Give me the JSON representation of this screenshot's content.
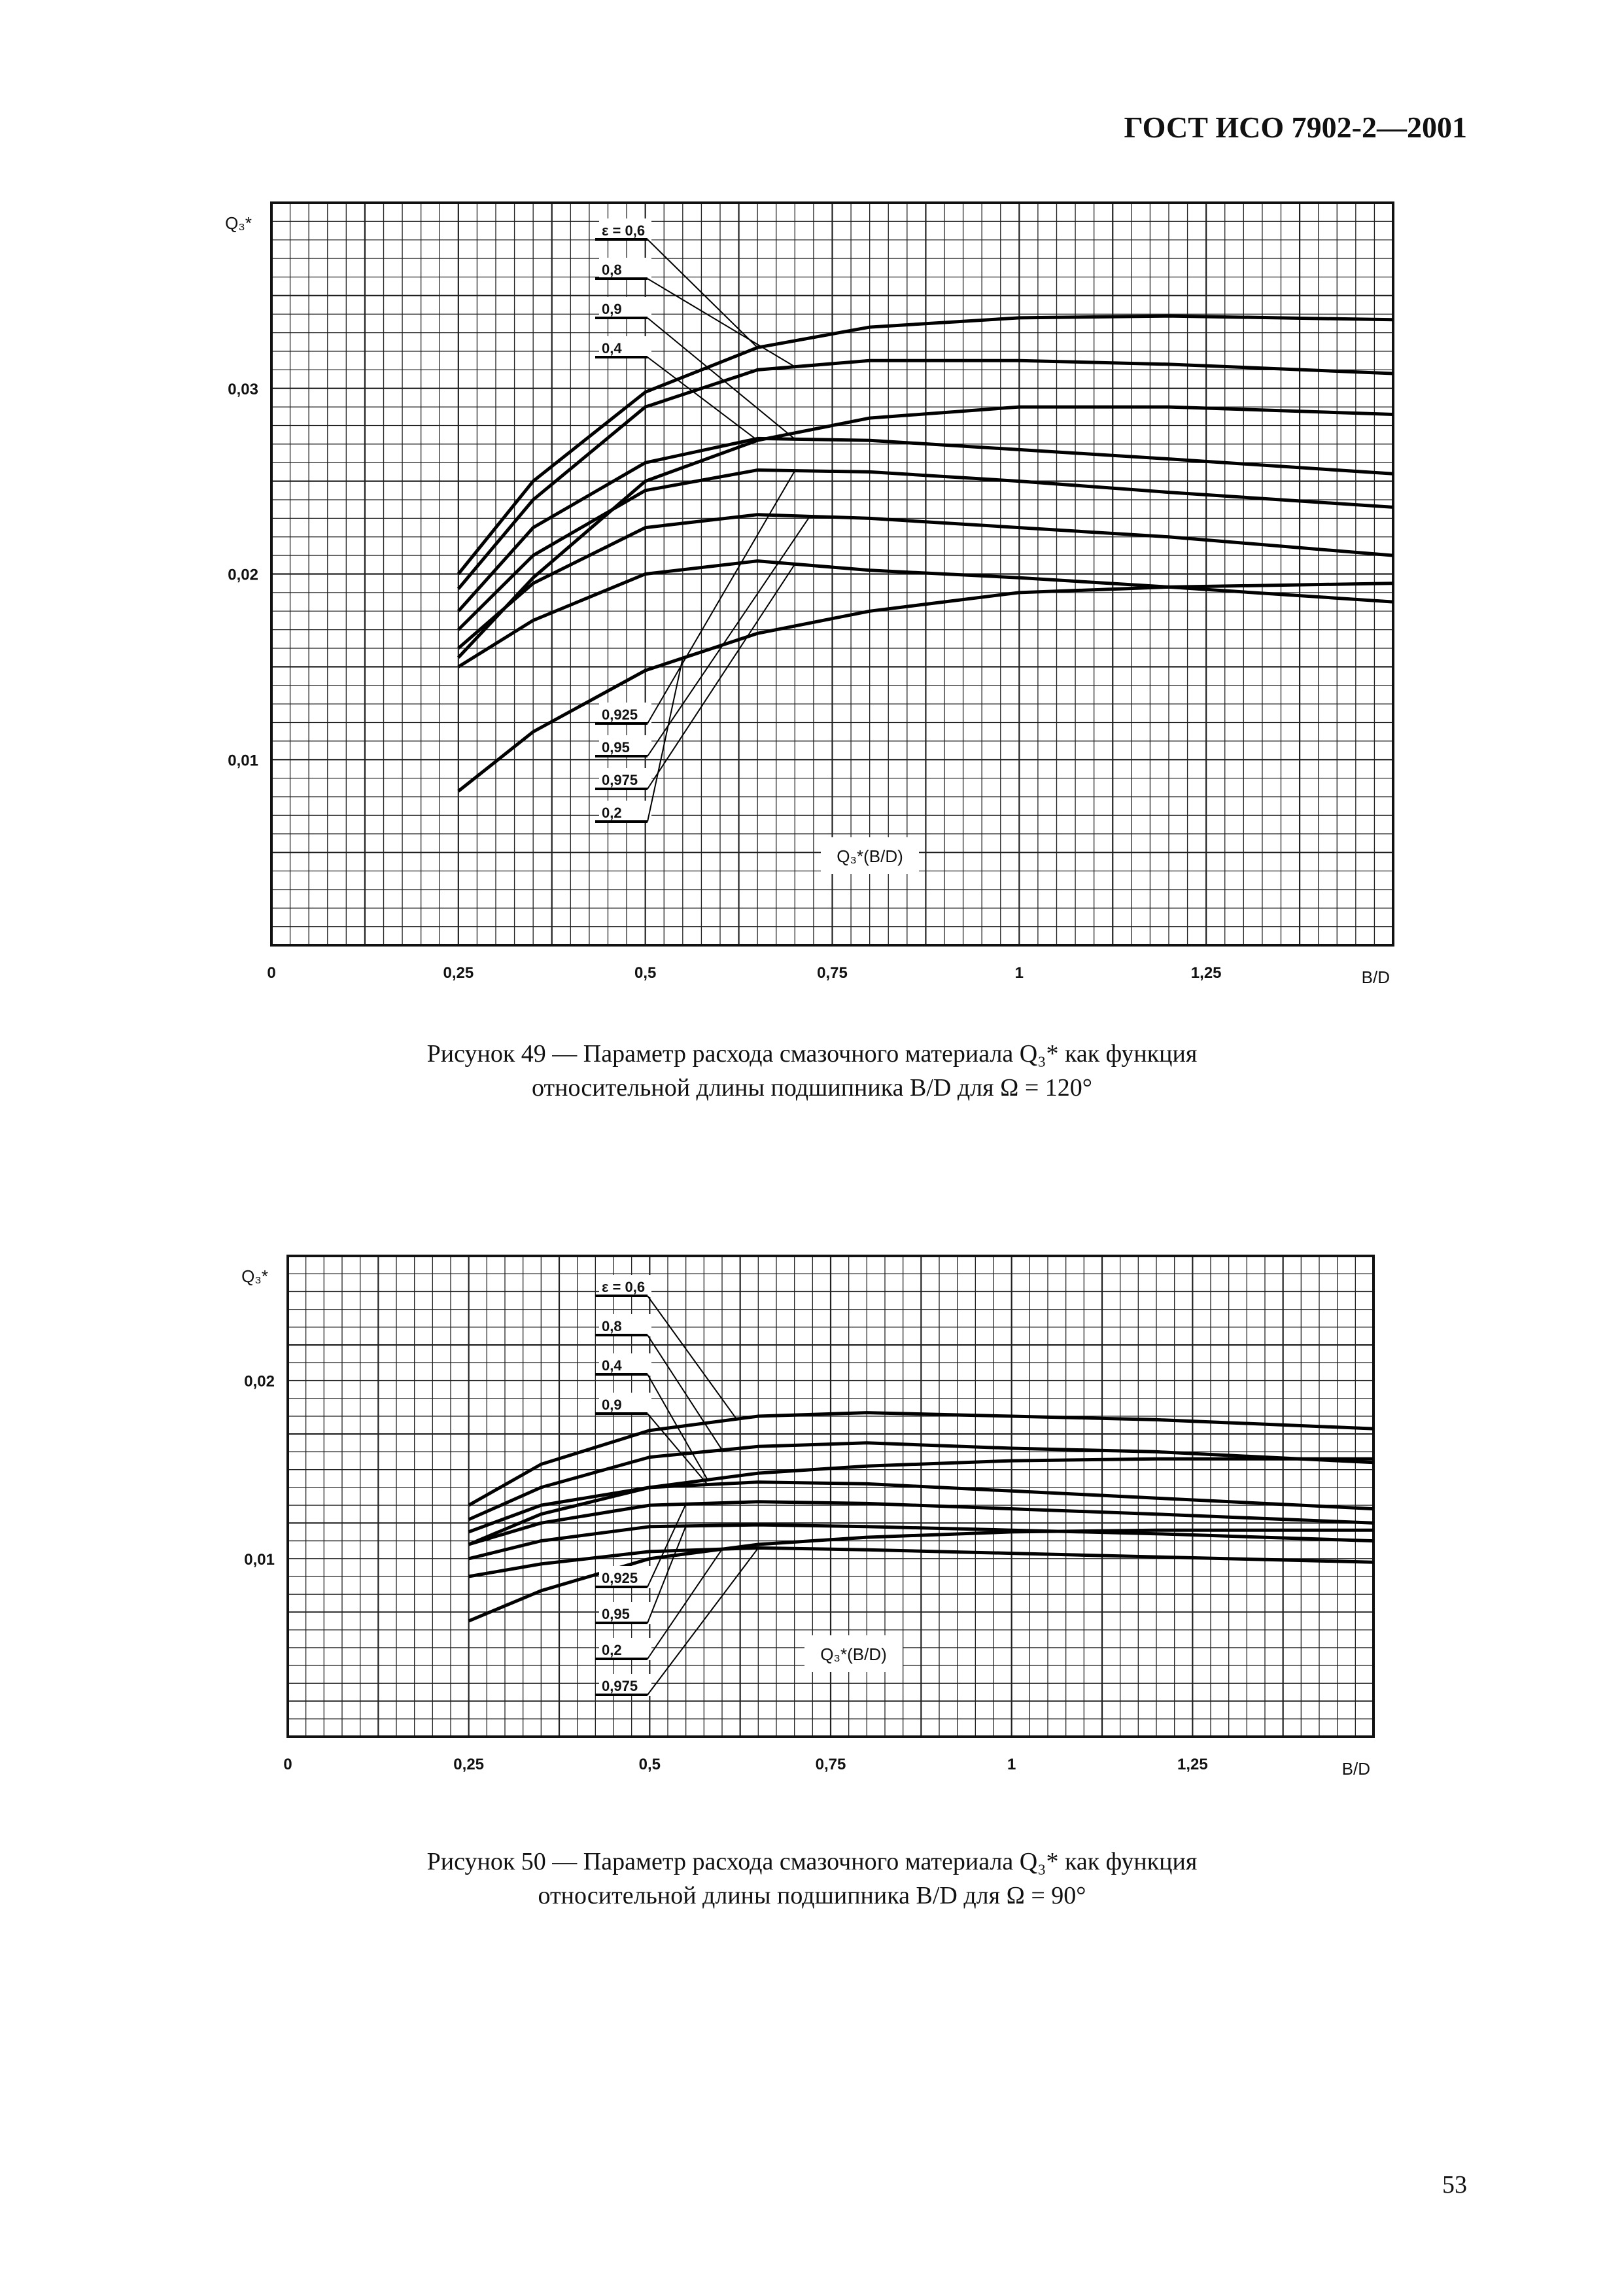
{
  "header": {
    "doc_code": "ГОСТ ИСО 7902-2—2001"
  },
  "page_number": "53",
  "captions": {
    "fig49_line1": "Рисунок 49 — Параметр расхода смазочного материала Q₃* как функция",
    "fig49_line2": "относительной длины подшипника B/D для Ω = 120°",
    "fig50_line1": "Рисунок 50 — Параметр расхода смазочного материала Q₃* как функция",
    "fig50_line2": "относительной длины подшипника B/D для Ω = 90°"
  },
  "chart_data": [
    {
      "type": "line",
      "id": "fig49",
      "ylabel": "Q₃*",
      "xlabel": "B/D",
      "inset_label": "Q₃*(B/D)",
      "xlim": [
        0,
        1.5
      ],
      "ylim": [
        0,
        0.04
      ],
      "x_ticks": [
        "0",
        "0,25",
        "0,5",
        "0,75",
        "1",
        "1,25"
      ],
      "y_ticks": [
        "0,01",
        "0,02",
        "0,03"
      ],
      "y_tick_values": [
        0.01,
        0.02,
        0.03
      ],
      "grid": true,
      "x": [
        0.25,
        0.35,
        0.5,
        0.65,
        0.8,
        1.0,
        1.2,
        1.5
      ],
      "series": [
        {
          "name": "ε = 0,6",
          "values": [
            0.02,
            0.025,
            0.0298,
            0.0322,
            0.0333,
            0.0338,
            0.0339,
            0.0337
          ]
        },
        {
          "name": "0,8",
          "values": [
            0.0192,
            0.024,
            0.029,
            0.031,
            0.0315,
            0.0315,
            0.0313,
            0.0308
          ]
        },
        {
          "name": "0,9",
          "values": [
            0.018,
            0.0225,
            0.026,
            0.0273,
            0.0272,
            0.0267,
            0.0262,
            0.0254
          ]
        },
        {
          "name": "0,4",
          "values": [
            0.0155,
            0.0198,
            0.025,
            0.0272,
            0.0284,
            0.029,
            0.029,
            0.0286
          ]
        },
        {
          "name": "0,925",
          "values": [
            0.017,
            0.021,
            0.0245,
            0.0256,
            0.0255,
            0.025,
            0.0244,
            0.0236
          ]
        },
        {
          "name": "0,95",
          "values": [
            0.016,
            0.0195,
            0.0225,
            0.0232,
            0.023,
            0.0225,
            0.022,
            0.021
          ]
        },
        {
          "name": "0,975",
          "values": [
            0.015,
            0.0175,
            0.02,
            0.0207,
            0.0202,
            0.0198,
            0.0193,
            0.0185
          ]
        },
        {
          "name": "0,2",
          "values": [
            0.0083,
            0.0115,
            0.0148,
            0.0168,
            0.018,
            0.019,
            0.0193,
            0.0195
          ]
        }
      ]
    },
    {
      "type": "line",
      "id": "fig50",
      "ylabel": "Q₃*",
      "xlabel": "B/D",
      "inset_label": "Q₃*(B/D)",
      "xlim": [
        0,
        1.5
      ],
      "ylim": [
        0,
        0.027
      ],
      "x_ticks": [
        "0",
        "0,25",
        "0,5",
        "0,75",
        "1",
        "1,25"
      ],
      "y_ticks": [
        "0,01",
        "0,02"
      ],
      "y_tick_values": [
        0.01,
        0.02
      ],
      "grid": true,
      "x": [
        0.25,
        0.35,
        0.5,
        0.65,
        0.8,
        1.0,
        1.2,
        1.5
      ],
      "series": [
        {
          "name": "ε = 0,6",
          "values": [
            0.013,
            0.0153,
            0.0172,
            0.018,
            0.0182,
            0.018,
            0.0178,
            0.0173
          ]
        },
        {
          "name": "0,8",
          "values": [
            0.0122,
            0.014,
            0.0157,
            0.0163,
            0.0165,
            0.0162,
            0.016,
            0.0154
          ]
        },
        {
          "name": "0,4",
          "values": [
            0.0108,
            0.0125,
            0.014,
            0.0148,
            0.0152,
            0.0155,
            0.0156,
            0.0156
          ]
        },
        {
          "name": "0,9",
          "values": [
            0.0115,
            0.013,
            0.014,
            0.0143,
            0.0142,
            0.0138,
            0.0134,
            0.0128
          ]
        },
        {
          "name": "0,925",
          "values": [
            0.0108,
            0.012,
            0.013,
            0.0132,
            0.0131,
            0.0128,
            0.0125,
            0.012
          ]
        },
        {
          "name": "0,95",
          "values": [
            0.01,
            0.011,
            0.0118,
            0.0119,
            0.0118,
            0.0116,
            0.0114,
            0.011
          ]
        },
        {
          "name": "0,2",
          "values": [
            0.0065,
            0.0082,
            0.01,
            0.0108,
            0.0112,
            0.0115,
            0.0116,
            0.0116
          ]
        },
        {
          "name": "0,975",
          "values": [
            0.009,
            0.0097,
            0.0104,
            0.0106,
            0.0105,
            0.0103,
            0.0101,
            0.0098
          ]
        }
      ]
    }
  ]
}
